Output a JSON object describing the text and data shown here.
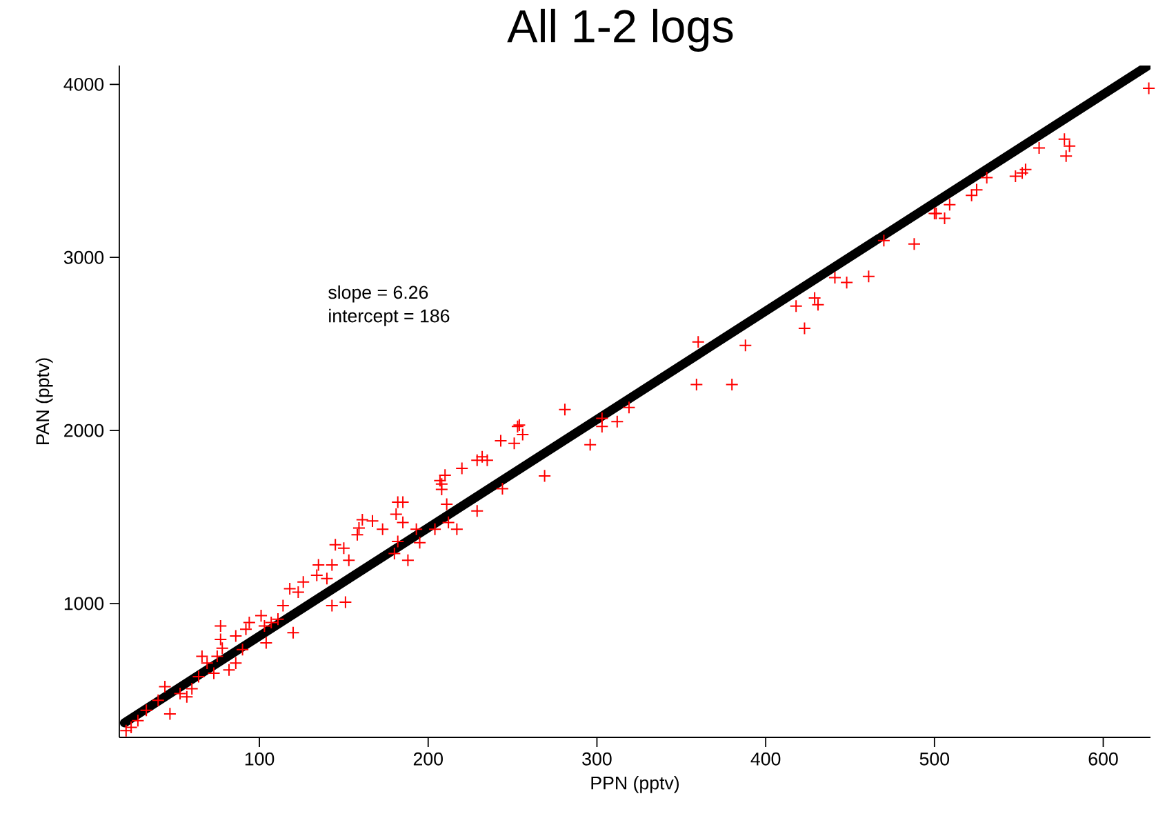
{
  "chart_data": {
    "type": "scatter",
    "title": "All 1-2 logs",
    "xlabel": "PPN (pptv)",
    "ylabel": "PAN (pptv)",
    "annotations": [
      "slope = 6.26",
      "intercept = 186"
    ],
    "xlim": [
      17,
      628
    ],
    "ylim": [
      227,
      4109
    ],
    "xticks": [
      100,
      200,
      300,
      400,
      500,
      600
    ],
    "yticks": [
      1000,
      2000,
      3000,
      4000
    ],
    "series": [
      {
        "color": "#ff0000",
        "marker": "cross",
        "x": [
          627,
          578,
          577,
          580,
          562,
          554,
          552,
          548,
          531,
          525,
          522,
          509,
          506,
          501,
          500,
          488,
          470,
          461,
          448,
          441,
          431,
          429,
          418,
          423,
          388,
          380,
          360,
          359,
          319,
          312,
          303,
          303,
          296,
          281,
          269,
          256,
          253,
          254,
          251,
          244,
          243,
          235,
          229,
          232,
          229,
          217,
          220,
          210,
          208,
          208,
          207,
          211,
          212,
          204,
          188,
          185,
          182,
          181,
          185,
          193,
          195,
          180,
          182,
          173,
          167,
          161,
          158,
          159,
          153,
          151,
          150,
          145,
          143,
          143,
          135,
          140,
          134,
          126,
          123,
          118,
          120,
          114,
          107,
          101,
          104,
          94,
          86,
          77,
          78,
          75,
          69,
          66,
          73,
          64,
          60,
          53,
          47,
          44,
          40,
          33,
          28,
          24,
          21,
          86,
          90,
          92,
          103,
          111,
          57,
          82,
          77
        ],
        "values": [
          3977,
          3586,
          3683,
          3644,
          3633,
          3508,
          3488,
          3469,
          3461,
          3391,
          3359,
          3305,
          3226,
          3254,
          3254,
          3078,
          3098,
          2890,
          2855,
          2883,
          2727,
          2766,
          2719,
          2590,
          2492,
          2266,
          2512,
          2266,
          2133,
          2051,
          2023,
          2070,
          1918,
          2121,
          1738,
          1977,
          2023,
          2031,
          1926,
          1664,
          1941,
          1828,
          1828,
          1848,
          1535,
          1430,
          1781,
          1742,
          1691,
          1660,
          1711,
          1574,
          1469,
          1430,
          1250,
          1586,
          1586,
          1516,
          1469,
          1430,
          1352,
          1289,
          1359,
          1430,
          1477,
          1484,
          1398,
          1437,
          1250,
          1008,
          1320,
          1340,
          1223,
          988,
          1223,
          1145,
          1164,
          1125,
          1066,
          1086,
          832,
          988,
          891,
          930,
          773,
          891,
          813,
          793,
          742,
          695,
          656,
          695,
          598,
          578,
          508,
          480,
          363,
          520,
          441,
          383,
          324,
          285,
          266,
          656,
          734,
          852,
          871,
          910,
          461,
          617,
          871
        ]
      },
      {
        "type": "line",
        "color": "#000000",
        "line_style": "solid",
        "x": [
          20,
          626
        ],
        "values": [
          311,
          4105
        ]
      }
    ]
  }
}
